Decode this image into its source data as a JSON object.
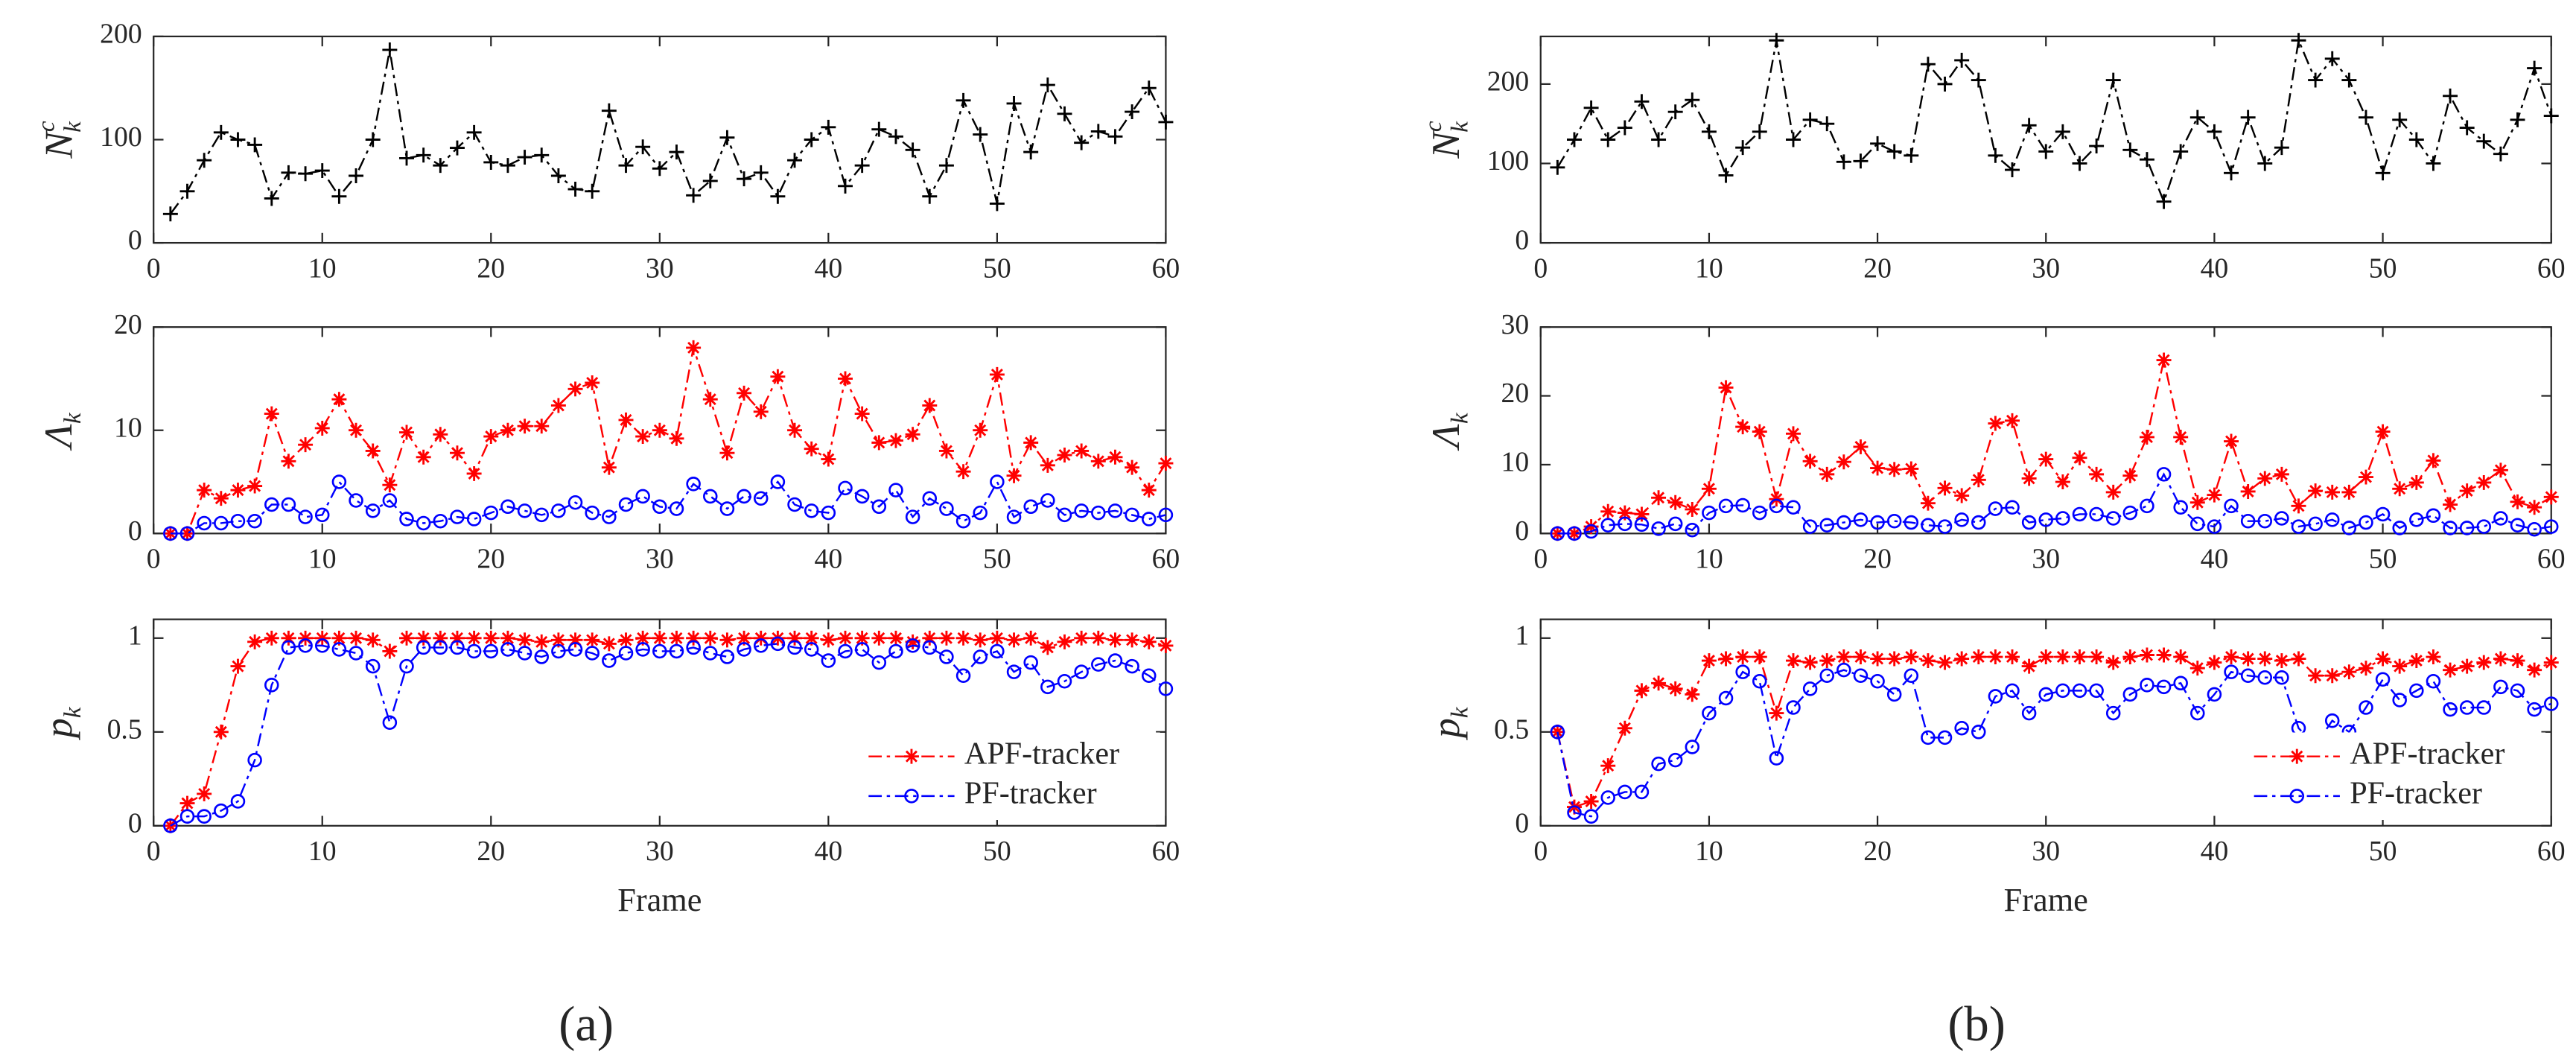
{
  "panel_labels": [
    "(a)",
    "(b)"
  ],
  "chart_data": [
    {
      "type": "line",
      "ylabel": "N",
      "ylabel_subscript": "k",
      "ylabel_superscript": "c",
      "x": [
        1,
        2,
        3,
        4,
        5,
        6,
        7,
        8,
        9,
        10,
        11,
        12,
        13,
        14,
        15,
        16,
        17,
        18,
        19,
        20,
        21,
        22,
        23,
        24,
        25,
        26,
        27,
        28,
        29,
        30,
        31,
        32,
        33,
        34,
        35,
        36,
        37,
        38,
        39,
        40,
        41,
        42,
        43,
        44,
        45,
        46,
        47,
        48,
        49,
        50,
        51,
        52,
        53,
        54,
        55,
        56,
        57,
        58,
        59,
        60
      ],
      "values": [
        28,
        50,
        80,
        107,
        100,
        95,
        43,
        68,
        67,
        70,
        45,
        65,
        100,
        187,
        82,
        85,
        75,
        92,
        107,
        78,
        75,
        83,
        85,
        65,
        52,
        50,
        128,
        75,
        93,
        72,
        88,
        46,
        60,
        102,
        62,
        68,
        45,
        80,
        100,
        112,
        55,
        75,
        110,
        103,
        90,
        45,
        75,
        138,
        105,
        38,
        135,
        88,
        153,
        125,
        97,
        108,
        103,
        127,
        150,
        117
      ],
      "color": "#000000",
      "marker": "plus",
      "linestyle": "dashdot",
      "xlim": [
        0,
        60
      ],
      "xticks": [
        0,
        10,
        20,
        30,
        40,
        50,
        60
      ],
      "ylim": [
        0,
        200
      ],
      "yticks": [
        0,
        100,
        200
      ]
    },
    {
      "type": "line",
      "ylabel": "Λ",
      "ylabel_subscript": "k",
      "x": [
        1,
        2,
        3,
        4,
        5,
        6,
        7,
        8,
        9,
        10,
        11,
        12,
        13,
        14,
        15,
        16,
        17,
        18,
        19,
        20,
        21,
        22,
        23,
        24,
        25,
        26,
        27,
        28,
        29,
        30,
        31,
        32,
        33,
        34,
        35,
        36,
        37,
        38,
        39,
        40,
        41,
        42,
        43,
        44,
        45,
        46,
        47,
        48,
        49,
        50,
        51,
        52,
        53,
        54,
        55,
        56,
        57,
        58,
        59,
        60
      ],
      "series": [
        {
          "color": "#ff0000",
          "marker": "asterisk",
          "values": [
            0,
            0,
            4.2,
            3.4,
            4.2,
            4.6,
            11.6,
            7,
            8.6,
            10.2,
            13,
            10,
            8,
            4.7,
            9.8,
            7.4,
            9.6,
            7.8,
            5.8,
            9.4,
            10,
            10.4,
            10.4,
            12.4,
            14,
            14.6,
            6.4,
            11,
            9.4,
            10,
            9.2,
            18,
            13,
            7.8,
            13.6,
            11.8,
            15.2,
            10,
            8.2,
            7.2,
            15,
            11.6,
            8.8,
            9,
            9.6,
            12.4,
            8,
            6,
            10,
            15.4,
            5.6,
            8.8,
            6.6,
            7.6,
            8,
            7,
            7.4,
            6.4,
            4.2,
            6.8
          ]
        },
        {
          "color": "#0000ff",
          "marker": "circle",
          "values": [
            0,
            0,
            1,
            1,
            1.2,
            1.2,
            2.8,
            2.8,
            1.6,
            1.8,
            5,
            3.2,
            2.2,
            3.2,
            1.4,
            1,
            1.2,
            1.6,
            1.4,
            2,
            2.6,
            2.2,
            1.8,
            2.2,
            3,
            2,
            1.6,
            2.8,
            3.6,
            2.6,
            2.4,
            4.8,
            3.6,
            2.4,
            3.6,
            3.4,
            5,
            2.8,
            2.2,
            2,
            4.4,
            3.6,
            2.6,
            4.2,
            1.6,
            3.4,
            2.4,
            1.2,
            2,
            5,
            1.6,
            2.6,
            3.2,
            1.8,
            2.2,
            2,
            2.2,
            1.8,
            1.4,
            1.8
          ]
        }
      ],
      "linestyle": "dashdot",
      "xlim": [
        0,
        60
      ],
      "xticks": [
        0,
        10,
        20,
        30,
        40,
        50,
        60
      ],
      "ylim": [
        0,
        20
      ],
      "yticks": [
        0,
        10,
        20
      ]
    },
    {
      "type": "line",
      "ylabel": "p",
      "ylabel_subscript": "k",
      "xlabel": "Frame",
      "x": [
        1,
        2,
        3,
        4,
        5,
        6,
        7,
        8,
        9,
        10,
        11,
        12,
        13,
        14,
        15,
        16,
        17,
        18,
        19,
        20,
        21,
        22,
        23,
        24,
        25,
        26,
        27,
        28,
        29,
        30,
        31,
        32,
        33,
        34,
        35,
        36,
        37,
        38,
        39,
        40,
        41,
        42,
        43,
        44,
        45,
        46,
        47,
        48,
        49,
        50,
        51,
        52,
        53,
        54,
        55,
        56,
        57,
        58,
        59,
        60
      ],
      "series": [
        {
          "name": "APF-tracker",
          "color": "#ff0000",
          "marker": "asterisk",
          "values": [
            0,
            0.12,
            0.17,
            0.5,
            0.85,
            0.98,
            1,
            1,
            1,
            1,
            1,
            1,
            0.99,
            0.93,
            1,
            1,
            1,
            1,
            1,
            1,
            1,
            0.99,
            0.98,
            0.99,
            0.99,
            0.99,
            0.97,
            0.99,
            1,
            1,
            1,
            1,
            1,
            0.99,
            1,
            1,
            1,
            1,
            1,
            0.99,
            1,
            1,
            1,
            1,
            0.98,
            1,
            1,
            1,
            0.99,
            1,
            0.99,
            1,
            0.95,
            0.98,
            1,
            1,
            0.99,
            0.99,
            0.98,
            0.96
          ]
        },
        {
          "name": "PF-tracker",
          "color": "#0000ff",
          "marker": "circle",
          "values": [
            0,
            0.05,
            0.05,
            0.08,
            0.13,
            0.35,
            0.75,
            0.95,
            0.96,
            0.96,
            0.94,
            0.92,
            0.85,
            0.55,
            0.85,
            0.95,
            0.95,
            0.95,
            0.93,
            0.93,
            0.94,
            0.92,
            0.9,
            0.93,
            0.94,
            0.92,
            0.88,
            0.92,
            0.94,
            0.93,
            0.93,
            0.95,
            0.92,
            0.9,
            0.94,
            0.96,
            0.97,
            0.95,
            0.94,
            0.88,
            0.93,
            0.94,
            0.87,
            0.93,
            0.96,
            0.95,
            0.9,
            0.8,
            0.9,
            0.93,
            0.82,
            0.87,
            0.74,
            0.77,
            0.82,
            0.86,
            0.88,
            0.85,
            0.8,
            0.73
          ]
        }
      ],
      "linestyle": "dashdot",
      "legend": "lower right",
      "xlim": [
        0,
        60
      ],
      "xticks": [
        0,
        10,
        20,
        30,
        40,
        50,
        60
      ],
      "ylim": [
        0,
        1.1
      ],
      "yticks": [
        0,
        0.5,
        1
      ]
    },
    {
      "type": "line",
      "ylabel": "N",
      "ylabel_subscript": "k",
      "ylabel_superscript": "c",
      "x": [
        1,
        2,
        3,
        4,
        5,
        6,
        7,
        8,
        9,
        10,
        11,
        12,
        13,
        14,
        15,
        16,
        17,
        18,
        19,
        20,
        21,
        22,
        23,
        24,
        25,
        26,
        27,
        28,
        29,
        30,
        31,
        32,
        33,
        34,
        35,
        36,
        37,
        38,
        39,
        40,
        41,
        42,
        43,
        44,
        45,
        46,
        47,
        48,
        49,
        50,
        51,
        52,
        53,
        54,
        55,
        56,
        57,
        58,
        59,
        60
      ],
      "values": [
        95,
        130,
        170,
        130,
        145,
        178,
        130,
        165,
        180,
        140,
        85,
        120,
        140,
        255,
        130,
        155,
        150,
        102,
        103,
        125,
        115,
        110,
        225,
        200,
        230,
        205,
        110,
        92,
        148,
        115,
        140,
        100,
        122,
        205,
        117,
        105,
        52,
        115,
        158,
        140,
        88,
        158,
        100,
        120,
        255,
        205,
        232,
        205,
        158,
        88,
        155,
        130,
        100,
        185,
        145,
        128,
        112,
        155,
        220,
        160
      ],
      "color": "#000000",
      "marker": "plus",
      "linestyle": "dashdot",
      "xlim": [
        0,
        60
      ],
      "xticks": [
        0,
        10,
        20,
        30,
        40,
        50,
        60
      ],
      "ylim": [
        0,
        260
      ],
      "yticks": [
        0,
        100,
        200
      ]
    },
    {
      "type": "line",
      "ylabel": "Λ",
      "ylabel_subscript": "k",
      "x": [
        1,
        2,
        3,
        4,
        5,
        6,
        7,
        8,
        9,
        10,
        11,
        12,
        13,
        14,
        15,
        16,
        17,
        18,
        19,
        20,
        21,
        22,
        23,
        24,
        25,
        26,
        27,
        28,
        29,
        30,
        31,
        32,
        33,
        34,
        35,
        36,
        37,
        38,
        39,
        40,
        41,
        42,
        43,
        44,
        45,
        46,
        47,
        48,
        49,
        50,
        51,
        52,
        53,
        54,
        55,
        56,
        57,
        58,
        59,
        60
      ],
      "series": [
        {
          "color": "#ff0000",
          "marker": "asterisk",
          "values": [
            0,
            0,
            1,
            3.2,
            3,
            2.8,
            5.2,
            4.5,
            3.5,
            6.5,
            21.2,
            15.5,
            14.8,
            5,
            14.5,
            10.5,
            8.6,
            10.4,
            12.6,
            9.5,
            9.3,
            9.4,
            4.4,
            6.6,
            5.5,
            7.8,
            16,
            16.4,
            8,
            10.8,
            7.5,
            11,
            8.6,
            6,
            8.4,
            14,
            25.2,
            14,
            4.5,
            5.6,
            13.4,
            6.1,
            8,
            8.6,
            4,
            6.2,
            6,
            6,
            8.2,
            14.8,
            6.5,
            7.4,
            10.6,
            4.2,
            6.2,
            7.4,
            9.2,
            4.6,
            3.8,
            5.3
          ]
        },
        {
          "color": "#0000ff",
          "marker": "circle",
          "values": [
            0,
            0,
            0.3,
            1.2,
            1.4,
            1.3,
            0.7,
            1.4,
            0.5,
            3,
            4,
            4.1,
            3,
            4,
            3.8,
            1,
            1.2,
            1.6,
            2,
            1.6,
            1.8,
            1.6,
            1.2,
            1,
            2,
            1.6,
            3.6,
            3.8,
            1.6,
            2,
            2.2,
            2.8,
            2.8,
            2.2,
            3,
            4,
            8.6,
            3.8,
            1.4,
            1,
            4,
            1.8,
            1.8,
            2.2,
            1,
            1.4,
            2,
            0.8,
            1.6,
            2.8,
            0.8,
            2,
            2.6,
            0.8,
            0.8,
            1,
            2.2,
            1.2,
            0.6,
            1
          ]
        }
      ],
      "linestyle": "dashdot",
      "xlim": [
        0,
        60
      ],
      "xticks": [
        0,
        10,
        20,
        30,
        40,
        50,
        60
      ],
      "ylim": [
        0,
        30
      ],
      "yticks": [
        0,
        10,
        20,
        30
      ]
    },
    {
      "type": "line",
      "ylabel": "p",
      "ylabel_subscript": "k",
      "xlabel": "Frame",
      "x": [
        1,
        2,
        3,
        4,
        5,
        6,
        7,
        8,
        9,
        10,
        11,
        12,
        13,
        14,
        15,
        16,
        17,
        18,
        19,
        20,
        21,
        22,
        23,
        24,
        25,
        26,
        27,
        28,
        29,
        30,
        31,
        32,
        33,
        34,
        35,
        36,
        37,
        38,
        39,
        40,
        41,
        42,
        43,
        44,
        45,
        46,
        47,
        48,
        49,
        50,
        51,
        52,
        53,
        54,
        55,
        56,
        57,
        58,
        59,
        60
      ],
      "series": [
        {
          "name": "APF-tracker",
          "color": "#ff0000",
          "marker": "asterisk",
          "values": [
            0.5,
            0.1,
            0.13,
            0.32,
            0.52,
            0.72,
            0.76,
            0.73,
            0.7,
            0.88,
            0.89,
            0.9,
            0.9,
            0.6,
            0.88,
            0.87,
            0.88,
            0.9,
            0.9,
            0.89,
            0.89,
            0.9,
            0.88,
            0.87,
            0.89,
            0.9,
            0.9,
            0.9,
            0.85,
            0.9,
            0.9,
            0.9,
            0.9,
            0.87,
            0.9,
            0.91,
            0.91,
            0.9,
            0.84,
            0.87,
            0.9,
            0.89,
            0.89,
            0.88,
            0.89,
            0.8,
            0.8,
            0.82,
            0.84,
            0.89,
            0.85,
            0.88,
            0.9,
            0.83,
            0.85,
            0.87,
            0.89,
            0.88,
            0.83,
            0.87
          ]
        },
        {
          "name": "PF-tracker",
          "color": "#0000ff",
          "marker": "circle",
          "values": [
            0.5,
            0.07,
            0.05,
            0.15,
            0.18,
            0.18,
            0.33,
            0.35,
            0.42,
            0.6,
            0.68,
            0.82,
            0.77,
            0.36,
            0.63,
            0.73,
            0.8,
            0.83,
            0.8,
            0.77,
            0.7,
            0.8,
            0.47,
            0.47,
            0.52,
            0.5,
            0.69,
            0.72,
            0.6,
            0.7,
            0.72,
            0.72,
            0.72,
            0.6,
            0.7,
            0.75,
            0.74,
            0.76,
            0.6,
            0.7,
            0.82,
            0.8,
            0.79,
            0.79,
            0.52,
            0.43,
            0.56,
            0.5,
            0.63,
            0.78,
            0.67,
            0.72,
            0.77,
            0.62,
            0.63,
            0.63,
            0.74,
            0.72,
            0.62,
            0.65
          ]
        }
      ],
      "linestyle": "dashdot",
      "legend": "lower right",
      "xlim": [
        0,
        60
      ],
      "xticks": [
        0,
        10,
        20,
        30,
        40,
        50,
        60
      ],
      "ylim": [
        0,
        1.1
      ],
      "yticks": [
        0,
        0.5,
        1
      ]
    }
  ]
}
